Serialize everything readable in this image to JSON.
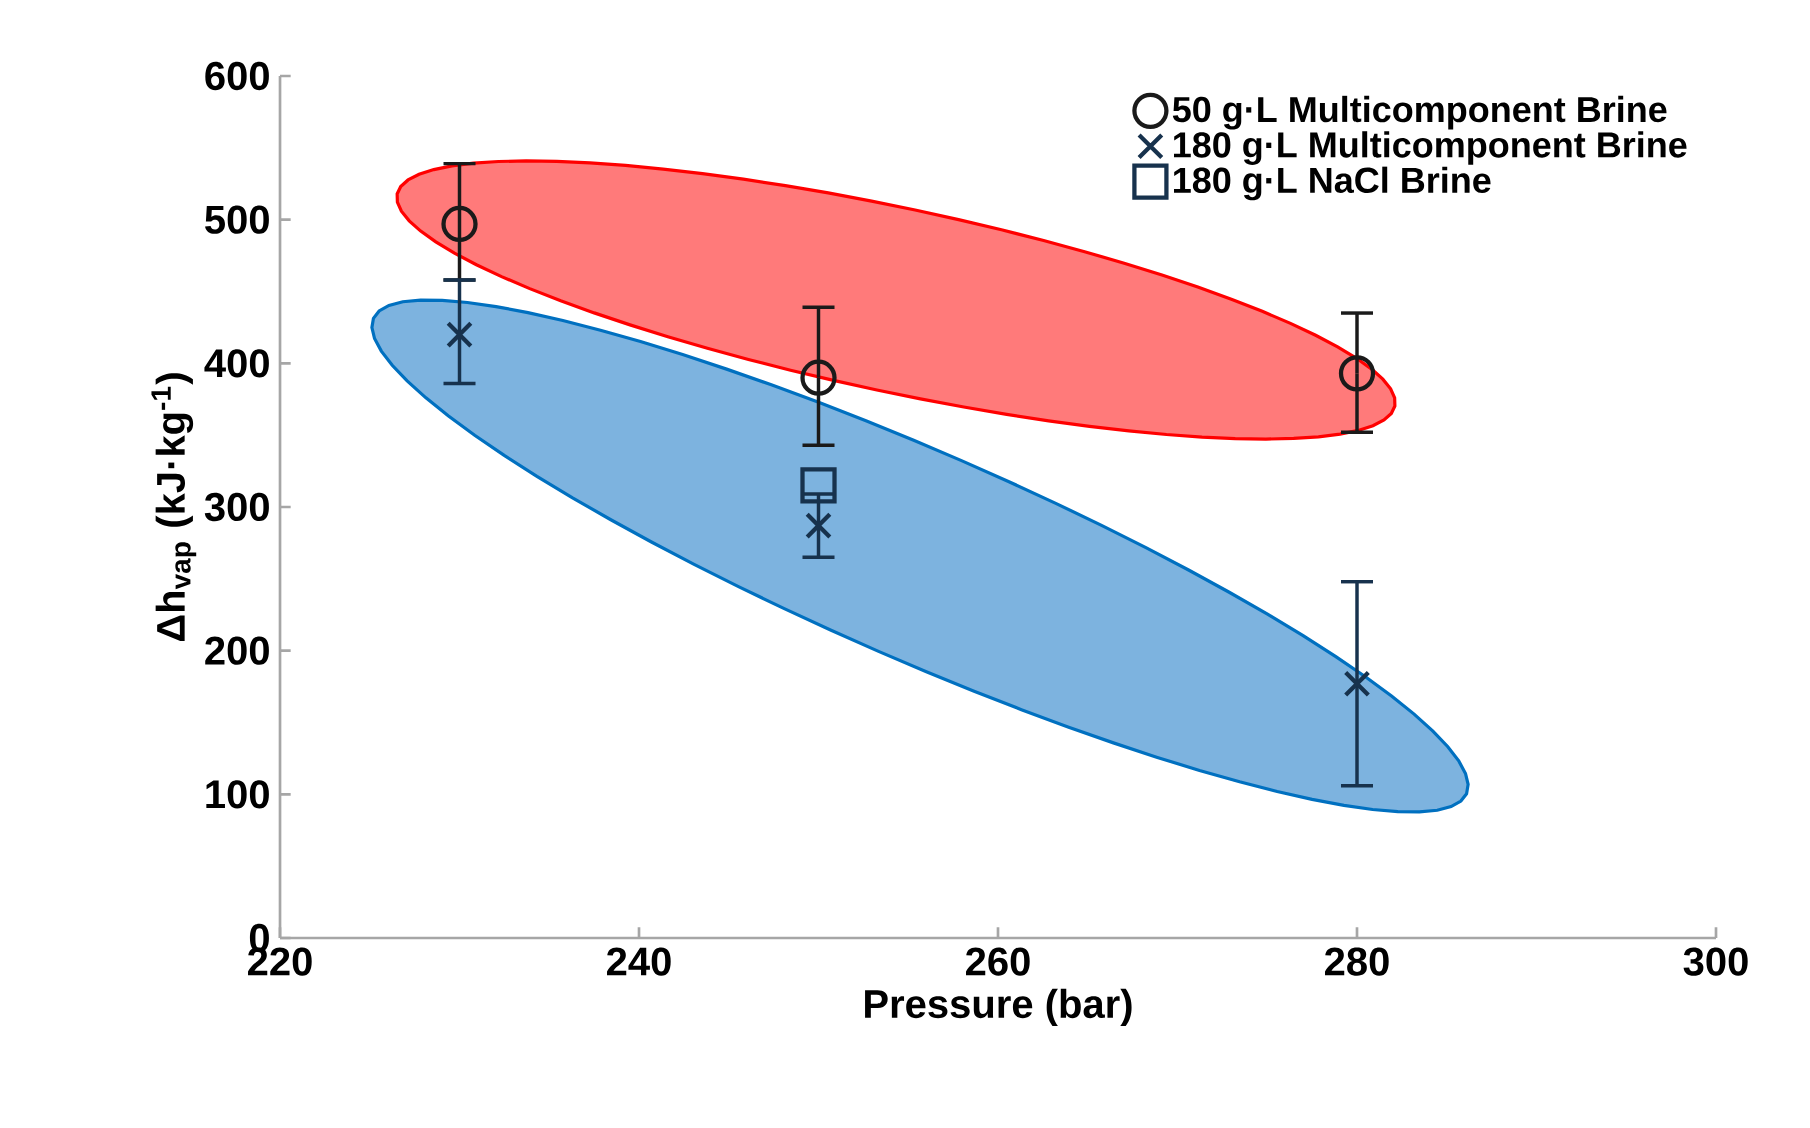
{
  "chart_data": {
    "type": "scatter",
    "xlabel": "Pressure (bar)",
    "ylabel": "Δh$_{vap}$ (kJ·kg$^{-1}$)",
    "x": [
      230,
      250,
      280
    ],
    "series": [
      {
        "name": "50 g·L   Multicomponent Brine",
        "color": "#1a1a1a",
        "marker": "circle",
        "values": [
          497,
          390,
          393
        ],
        "errors": [
          [
            458,
            539
          ],
          [
            343,
            439
          ],
          [
            352,
            435
          ]
        ]
      },
      {
        "name": "180 g·L   Multicomponent Brine",
        "color": "#17324d",
        "marker": "cross",
        "values": [
          420,
          287,
          177
        ],
        "x": [
          230,
          250,
          280
        ],
        "errors": [
          [
            386,
            458
          ],
          [
            265,
            309
          ],
          [
            106,
            248
          ]
        ]
      },
      {
        "name": "180 g·L   NaCl Brine",
        "color": "#17324d",
        "marker": "square",
        "x": [
          250
        ],
        "values": [
          315
        ]
      }
    ],
    "xlim": [
      220,
      300
    ],
    "xticks": [
      220,
      240,
      260,
      280,
      300
    ],
    "ylim": [
      0,
      600
    ],
    "yticks": [
      0,
      100,
      200,
      300,
      400,
      500,
      600
    ],
    "grid": false,
    "legend": "top right"
  }
}
